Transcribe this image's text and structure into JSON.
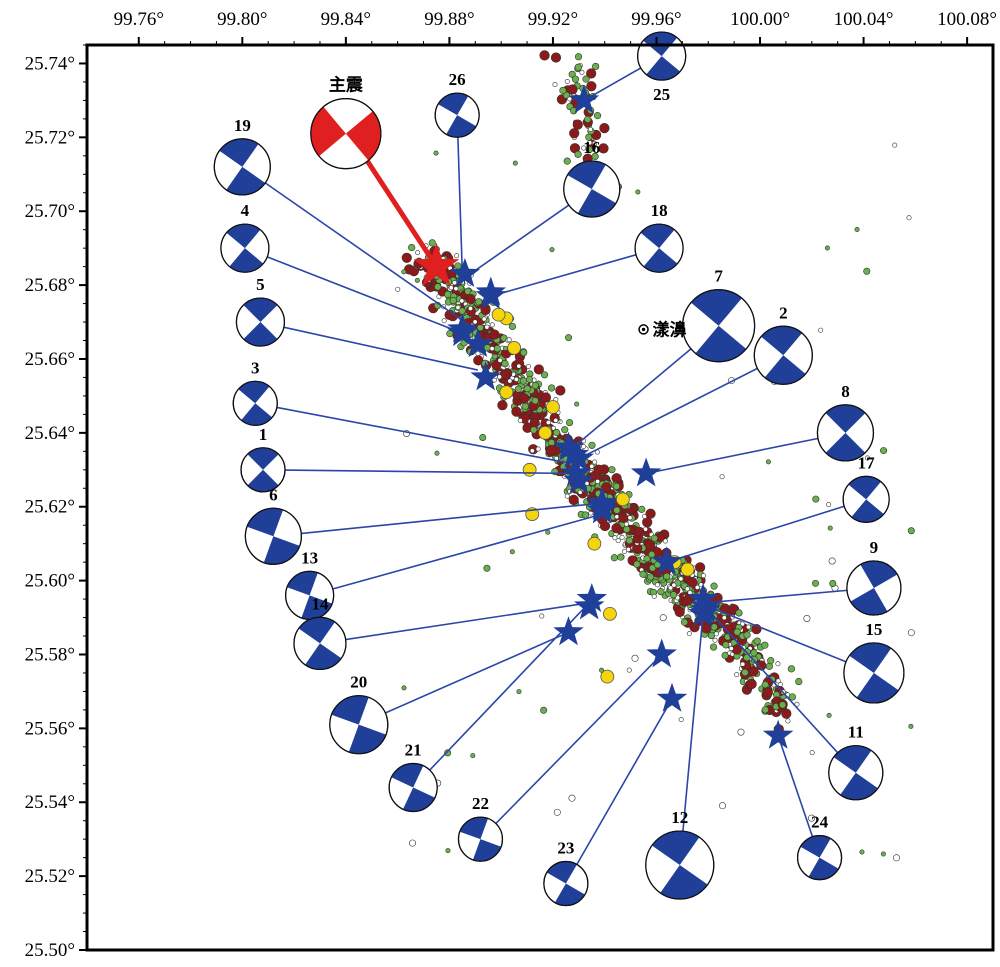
{
  "map": {
    "x_ticks": [
      "99.76°",
      "99.80°",
      "99.84°",
      "99.88°",
      "99.92°",
      "99.96°",
      "100.00°",
      "100.04°",
      "100.08°"
    ],
    "y_ticks": [
      "25.74°",
      "25.72°",
      "25.70°",
      "25.68°",
      "25.66°",
      "25.64°",
      "25.62°",
      "25.60°",
      "25.58°",
      "25.56°",
      "25.54°",
      "25.52°",
      "25.50°"
    ],
    "xlim": [
      99.74,
      100.09
    ],
    "ylim": [
      25.5,
      25.745
    ],
    "town": "漾濞",
    "mainshock_label": "主震",
    "colors": {
      "mechanism": "#1f3f99",
      "mainshock": "#e02020",
      "link_line": "#2a46a8",
      "dot_green": "#6ab04c",
      "dot_darkred": "#8b1a1a",
      "dot_yellow": "#f4d40a",
      "dot_small": "#d8d8d8"
    },
    "mainshock": {
      "name": "主震",
      "lon": 99.875,
      "lat": 25.685
    },
    "events": [
      {
        "id": "1",
        "lon": 99.929,
        "lat": 25.629
      },
      {
        "id": "2",
        "lon": 99.93,
        "lat": 25.633
      },
      {
        "id": "3",
        "lon": 99.928,
        "lat": 25.634
      },
      {
        "id": "4",
        "lon": 99.885,
        "lat": 25.668
      },
      {
        "id": "5",
        "lon": 99.891,
        "lat": 25.664
      },
      {
        "id": "6",
        "lon": 99.93,
        "lat": 25.627
      },
      {
        "id": "7",
        "lon": 99.926,
        "lat": 25.636
      },
      {
        "id": "8",
        "lon": 99.939,
        "lat": 25.62
      },
      {
        "id": "9",
        "lon": 99.978,
        "lat": 25.595
      },
      {
        "id": "11",
        "lon": 99.979,
        "lat": 25.592
      },
      {
        "id": "12",
        "lon": 99.978,
        "lat": 25.591
      },
      {
        "id": "13",
        "lon": 99.939,
        "lat": 25.619
      },
      {
        "id": "14",
        "lon": 99.939,
        "lat": 25.621
      },
      {
        "id": "15",
        "lon": 99.979,
        "lat": 25.593
      },
      {
        "id": "16",
        "lon": 99.896,
        "lat": 25.677
      },
      {
        "id": "17",
        "lon": 99.964,
        "lat": 25.605
      },
      {
        "id": "18",
        "lon": 99.896,
        "lat": 25.678
      },
      {
        "id": "19",
        "lon": 99.885,
        "lat": 25.667
      },
      {
        "id": "20",
        "lon": 99.935,
        "lat": 25.595
      },
      {
        "id": "21",
        "lon": 99.926,
        "lat": 25.586
      },
      {
        "id": "22",
        "lon": 99.962,
        "lat": 25.58
      },
      {
        "id": "23",
        "lon": 99.966,
        "lat": 25.568
      },
      {
        "id": "24",
        "lon": 100.007,
        "lat": 25.558
      },
      {
        "id": "25",
        "lon": 99.932,
        "lat": 25.73
      },
      {
        "id": "26",
        "lon": 99.886,
        "lat": 25.683
      },
      {
        "id": "27",
        "lon": 99.894,
        "lat": 25.655
      },
      {
        "id": "28",
        "lon": 99.956,
        "lat": 25.629
      },
      {
        "id": "29",
        "lon": 99.934,
        "lat": 25.593
      }
    ],
    "beachballs": [
      {
        "label": "主震",
        "lon": 99.84,
        "lat": 25.721,
        "r": 35,
        "strike": 320,
        "color": "#e02020"
      },
      {
        "label": "19",
        "lon": 99.8,
        "lat": 25.712,
        "r": 28,
        "strike": 35
      },
      {
        "label": "4",
        "lon": 99.801,
        "lat": 25.69,
        "r": 24,
        "strike": 40
      },
      {
        "label": "5",
        "lon": 99.807,
        "lat": 25.67,
        "r": 24,
        "strike": 45
      },
      {
        "label": "3",
        "lon": 99.805,
        "lat": 25.648,
        "r": 22,
        "strike": 40
      },
      {
        "label": "1",
        "lon": 99.808,
        "lat": 25.63,
        "r": 22,
        "strike": 45
      },
      {
        "label": "6",
        "lon": 99.812,
        "lat": 25.612,
        "r": 28,
        "strike": 200
      },
      {
        "label": "13",
        "lon": 99.826,
        "lat": 25.596,
        "r": 24,
        "strike": 20
      },
      {
        "label": "14",
        "lon": 99.83,
        "lat": 25.583,
        "r": 26,
        "strike": 35
      },
      {
        "label": "20",
        "lon": 99.845,
        "lat": 25.561,
        "r": 29,
        "strike": 200
      },
      {
        "label": "21",
        "lon": 99.866,
        "lat": 25.544,
        "r": 24,
        "strike": 25
      },
      {
        "label": "22",
        "lon": 99.892,
        "lat": 25.53,
        "r": 22,
        "strike": 20
      },
      {
        "label": "23",
        "lon": 99.925,
        "lat": 25.518,
        "r": 22,
        "strike": 30
      },
      {
        "label": "12",
        "lon": 99.969,
        "lat": 25.523,
        "r": 34,
        "strike": 215
      },
      {
        "label": "24",
        "lon": 100.023,
        "lat": 25.525,
        "r": 22,
        "strike": 30
      },
      {
        "label": "11",
        "lon": 100.037,
        "lat": 25.548,
        "r": 27,
        "strike": 35
      },
      {
        "label": "15",
        "lon": 100.044,
        "lat": 25.575,
        "r": 30,
        "strike": 35
      },
      {
        "label": "9",
        "lon": 100.044,
        "lat": 25.598,
        "r": 27,
        "strike": 60
      },
      {
        "label": "17",
        "lon": 100.041,
        "lat": 25.622,
        "r": 23,
        "strike": 40
      },
      {
        "label": "8",
        "lon": 100.033,
        "lat": 25.64,
        "r": 28,
        "strike": 45
      },
      {
        "label": "2",
        "lon": 100.009,
        "lat": 25.661,
        "r": 29,
        "strike": 40
      },
      {
        "label": "7",
        "lon": 99.984,
        "lat": 25.669,
        "r": 36,
        "strike": 220
      },
      {
        "label": "18",
        "lon": 99.961,
        "lat": 25.69,
        "r": 24,
        "strike": 40
      },
      {
        "label": "16",
        "lon": 99.935,
        "lat": 25.706,
        "r": 28,
        "strike": 30
      },
      {
        "label": "26",
        "lon": 99.883,
        "lat": 25.726,
        "r": 22,
        "strike": 30
      },
      {
        "label": "25",
        "lon": 99.962,
        "lat": 25.742,
        "r": 24,
        "strike": 40
      }
    ],
    "links": [
      {
        "from": "19",
        "to_lon": 99.888,
        "to_lat": 25.669
      },
      {
        "from": "4",
        "to_lon": 99.885,
        "to_lat": 25.667
      },
      {
        "from": "5",
        "to_lon": 99.891,
        "to_lat": 25.657
      },
      {
        "from": "3",
        "to_lon": 99.925,
        "to_lat": 25.632
      },
      {
        "from": "1",
        "to_lon": 99.929,
        "to_lat": 25.629
      },
      {
        "from": "6",
        "to_lon": 99.939,
        "to_lat": 25.621
      },
      {
        "from": "13",
        "to_lon": 99.939,
        "to_lat": 25.618
      },
      {
        "from": "14",
        "to_lon": 99.934,
        "to_lat": 25.594
      },
      {
        "from": "20",
        "to_lon": 99.926,
        "to_lat": 25.586
      },
      {
        "from": "21",
        "to_lon": 99.934,
        "to_lat": 25.594
      },
      {
        "from": "22",
        "to_lon": 99.962,
        "to_lat": 25.58
      },
      {
        "from": "23",
        "to_lon": 99.966,
        "to_lat": 25.568
      },
      {
        "from": "12",
        "to_lon": 99.978,
        "to_lat": 25.591
      },
      {
        "from": "24",
        "to_lon": 100.007,
        "to_lat": 25.558
      },
      {
        "from": "11",
        "to_lon": 99.98,
        "to_lat": 25.592
      },
      {
        "from": "15",
        "to_lon": 99.98,
        "to_lat": 25.593
      },
      {
        "from": "9",
        "to_lon": 99.979,
        "to_lat": 25.594
      },
      {
        "from": "17",
        "to_lon": 99.964,
        "to_lat": 25.605
      },
      {
        "from": "8",
        "to_lon": 99.956,
        "to_lat": 25.629
      },
      {
        "from": "2",
        "to_lon": 99.93,
        "to_lat": 25.633
      },
      {
        "from": "7",
        "to_lon": 99.926,
        "to_lat": 25.635
      },
      {
        "from": "18",
        "to_lon": 99.896,
        "to_lat": 25.677
      },
      {
        "from": "16",
        "to_lon": 99.886,
        "to_lat": 25.682
      },
      {
        "from": "26",
        "to_lon": 99.885,
        "to_lat": 25.683
      },
      {
        "from": "25",
        "to_lon": 99.932,
        "to_lat": 25.73
      }
    ],
    "town_pos": {
      "lon": 99.955,
      "lat": 25.668
    }
  }
}
